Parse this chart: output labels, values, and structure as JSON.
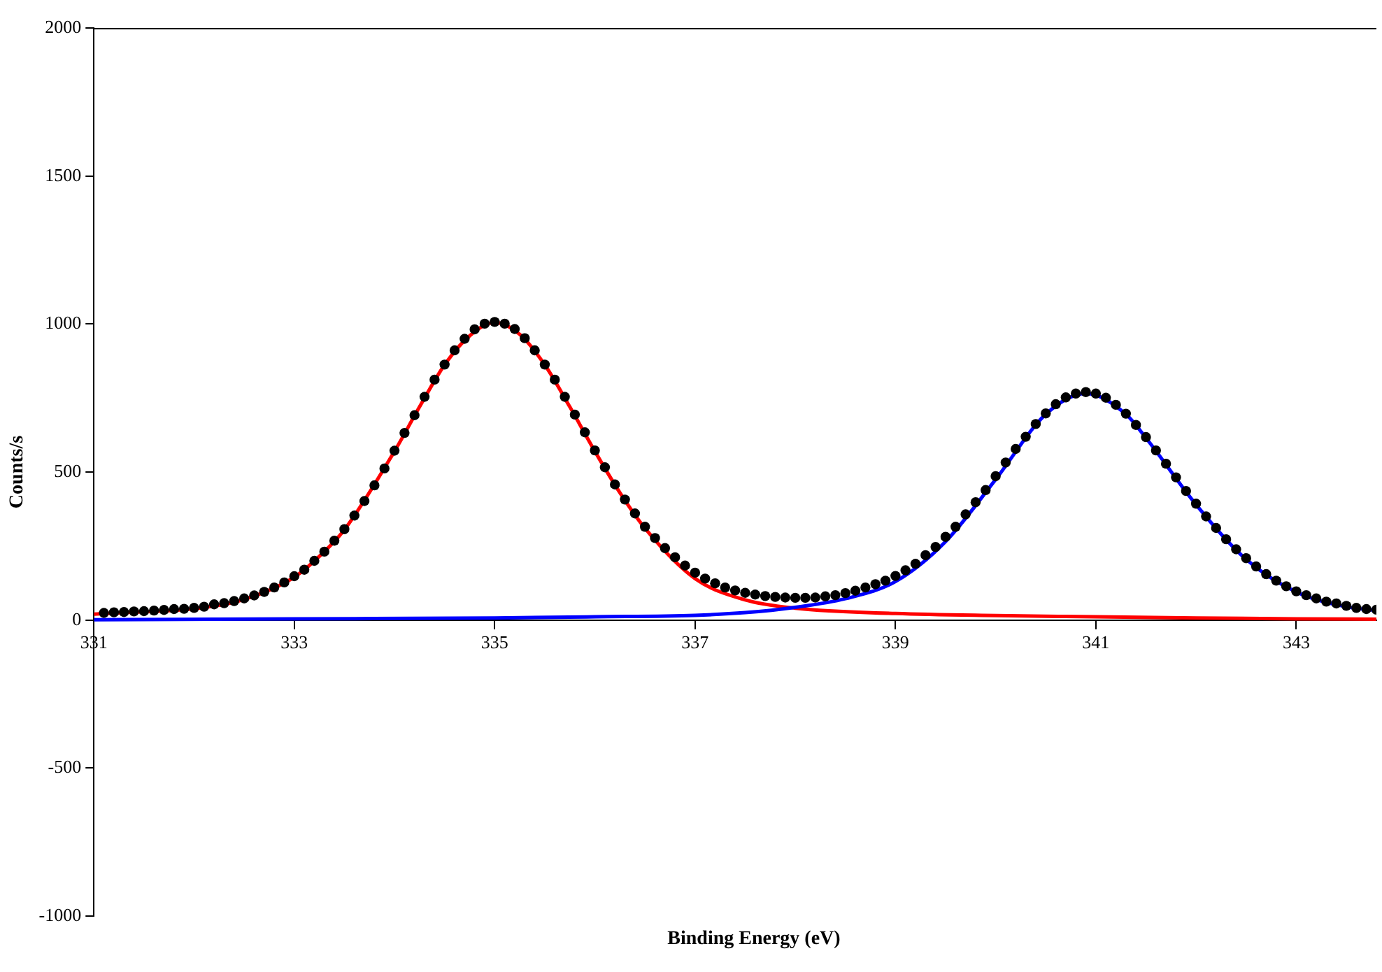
{
  "chart_data": {
    "type": "scatter",
    "xlabel": "Binding Energy (eV)",
    "ylabel": "Counts/s",
    "xlim": [
      331,
      343.8
    ],
    "xticks": [
      331,
      333,
      335,
      337,
      339,
      341,
      343
    ],
    "ylim": [
      -1000,
      2000
    ],
    "yticks": [
      -1000,
      -500,
      0,
      500,
      1000,
      1500,
      2000
    ],
    "grid": false,
    "legend": false,
    "series": [
      {
        "type": "line",
        "color": "#ff0000",
        "x": [
          331,
          331.5,
          332,
          332.5,
          333,
          333.25,
          333.5,
          334,
          334.25,
          334.5,
          334.75,
          335,
          335.25,
          335.5,
          335.75,
          336,
          336.25,
          336.5,
          337,
          337.5,
          338,
          339,
          340,
          341,
          342,
          343,
          343.8
        ],
        "values": [
          20,
          28,
          38,
          70,
          145,
          215,
          305,
          570,
          720,
          862,
          960,
          1005,
          965,
          862,
          720,
          570,
          430,
          310,
          140,
          68,
          40,
          22,
          15,
          11,
          7,
          4,
          3
        ]
      },
      {
        "type": "line",
        "color": "#0000ff",
        "x": [
          331,
          333,
          335,
          336,
          337,
          337.5,
          338,
          338.5,
          339,
          339.5,
          340,
          340.5,
          340.9,
          341.3,
          341.5,
          342,
          342.5,
          343,
          343.5,
          343.8
        ],
        "values": [
          1,
          4,
          7,
          11,
          16,
          25,
          43,
          72,
          130,
          265,
          475,
          695,
          765,
          695,
          615,
          390,
          205,
          95,
          45,
          32
        ]
      },
      {
        "type": "scatter",
        "color": "#000000",
        "marker": "circle",
        "x": [
          331.1,
          331.2,
          331.3,
          331.4,
          331.5,
          331.6,
          331.7,
          331.8,
          331.9,
          332.0,
          332.1,
          332.2,
          332.3,
          332.4,
          332.5,
          332.6,
          332.7,
          332.8,
          332.9,
          333.0,
          333.1,
          333.2,
          333.3,
          333.4,
          333.5,
          333.6,
          333.7,
          333.8,
          333.9,
          334.0,
          334.1,
          334.2,
          334.3,
          334.4,
          334.5,
          334.6,
          334.7,
          334.8,
          334.9,
          335.0,
          335.1,
          335.2,
          335.3,
          335.4,
          335.5,
          335.6,
          335.7,
          335.8,
          335.9,
          336.0,
          336.1,
          336.2,
          336.3,
          336.4,
          336.5,
          336.6,
          336.7,
          336.8,
          336.9,
          337.0,
          337.1,
          337.2,
          337.3,
          337.4,
          337.5,
          337.6,
          337.7,
          337.8,
          337.9,
          338.0,
          338.1,
          338.2,
          338.3,
          338.4,
          338.5,
          338.6,
          338.7,
          338.8,
          338.9,
          339.0,
          339.1,
          339.2,
          339.3,
          339.4,
          339.5,
          339.6,
          339.7,
          339.8,
          339.9,
          340.0,
          340.1,
          340.2,
          340.3,
          340.4,
          340.5,
          340.6,
          340.7,
          340.8,
          340.9,
          341.0,
          341.1,
          341.2,
          341.3,
          341.4,
          341.5,
          341.6,
          341.7,
          341.8,
          341.9,
          342.0,
          342.1,
          342.2,
          342.3,
          342.4,
          342.5,
          342.6,
          342.7,
          342.8,
          342.9,
          343.0,
          343.1,
          343.2,
          343.3,
          343.4,
          343.5,
          343.6,
          343.7,
          343.8
        ],
        "values": [
          24,
          26,
          27,
          29,
          30,
          32,
          34,
          37,
          38,
          41,
          45,
          53,
          57,
          64,
          73,
          83,
          95,
          110,
          127,
          148,
          170,
          200,
          231,
          268,
          307,
          353,
          402,
          455,
          512,
          572,
          632,
          692,
          754,
          812,
          863,
          911,
          950,
          982,
          1001,
          1007,
          1001,
          983,
          952,
          911,
          863,
          812,
          754,
          694,
          634,
          573,
          516,
          458,
          407,
          360,
          315,
          277,
          243,
          212,
          184,
          160,
          140,
          124,
          110,
          100,
          92,
          86,
          81,
          78,
          76,
          75,
          75,
          76,
          80,
          84,
          91,
          99,
          110,
          121,
          133,
          149,
          168,
          190,
          219,
          247,
          281,
          315,
          357,
          398,
          439,
          486,
          532,
          578,
          619,
          662,
          698,
          729,
          752,
          765,
          770,
          765,
          751,
          727,
          697,
          659,
          618,
          573,
          528,
          482,
          436,
          393,
          350,
          311,
          273,
          239,
          209,
          181,
          155,
          133,
          114,
          97,
          84,
          73,
          62,
          56,
          48,
          41,
          37,
          35
        ]
      }
    ]
  }
}
